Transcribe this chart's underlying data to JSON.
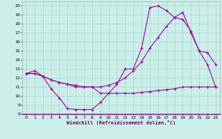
{
  "xlabel": "Windchill (Refroidissement éolien,°C)",
  "bg_color": "#cceee8",
  "grid_color": "#aad8d2",
  "line_color": "#990099",
  "xlim": [
    -0.5,
    23.5
  ],
  "ylim": [
    8,
    20.5
  ],
  "xticks": [
    0,
    1,
    2,
    3,
    4,
    5,
    6,
    7,
    8,
    9,
    10,
    11,
    12,
    13,
    14,
    15,
    16,
    17,
    18,
    19,
    20,
    21,
    22,
    23
  ],
  "yticks": [
    8,
    9,
    10,
    11,
    12,
    13,
    14,
    15,
    16,
    17,
    18,
    19,
    20
  ],
  "line1_x": [
    0,
    1,
    2,
    3,
    4,
    5,
    6,
    7,
    8,
    9,
    10,
    11,
    12,
    13,
    14,
    15,
    16,
    17,
    18,
    19,
    20,
    21,
    22,
    23
  ],
  "line1_y": [
    12.5,
    12.8,
    12.2,
    10.8,
    9.8,
    8.6,
    8.5,
    8.5,
    8.5,
    9.3,
    10.3,
    11.3,
    13.0,
    13.0,
    15.3,
    19.8,
    20.0,
    19.5,
    18.7,
    19.3,
    17.0,
    15.0,
    14.8,
    13.5
  ],
  "line2_x": [
    0,
    1,
    2,
    3,
    4,
    5,
    6,
    7,
    8,
    9,
    10,
    11,
    12,
    13,
    14,
    15,
    16,
    17,
    18,
    19,
    20,
    21,
    22,
    23
  ],
  "line2_y": [
    12.5,
    12.5,
    12.2,
    11.8,
    11.5,
    11.3,
    11.2,
    11.0,
    11.0,
    11.0,
    11.2,
    11.5,
    12.0,
    12.8,
    13.8,
    15.3,
    16.5,
    17.7,
    18.7,
    18.5,
    17.2,
    15.0,
    13.5,
    11.0
  ],
  "line3_x": [
    0,
    1,
    2,
    3,
    4,
    5,
    6,
    7,
    8,
    9,
    10,
    11,
    12,
    13,
    14,
    15,
    16,
    17,
    18,
    19,
    20,
    21,
    22,
    23
  ],
  "line3_y": [
    12.5,
    12.5,
    12.2,
    11.8,
    11.5,
    11.3,
    11.0,
    11.0,
    11.0,
    10.3,
    10.3,
    10.3,
    10.3,
    10.3,
    10.4,
    10.5,
    10.6,
    10.7,
    10.8,
    11.0,
    11.0,
    11.0,
    11.0,
    11.0
  ]
}
